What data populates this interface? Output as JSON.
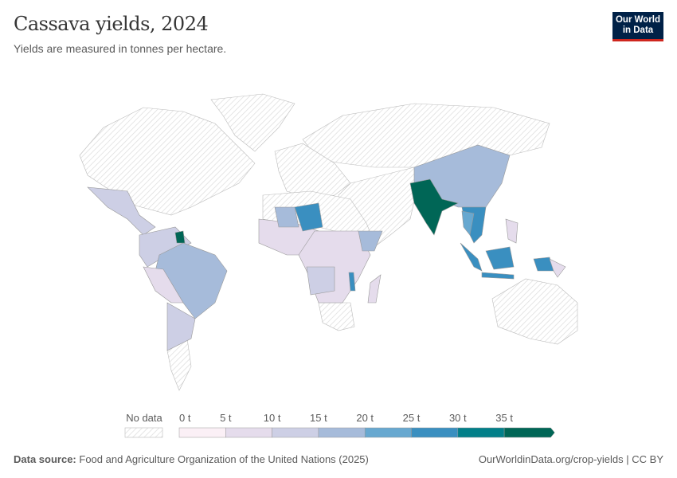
{
  "header": {
    "title": "Cassava yields, 2024",
    "subtitle": "Yields are measured in tonnes per hectare.",
    "logo": "Our World in Data"
  },
  "chart_data": {
    "type": "choropleth-map",
    "title": "Cassava yields, 2024",
    "unit": "t",
    "legend": {
      "no_data_label": "No data",
      "bins": [
        {
          "label": "0 t",
          "color": "#fbf0f6"
        },
        {
          "label": "5 t",
          "color": "#e5dcec"
        },
        {
          "label": "10 t",
          "color": "#cdcfe5"
        },
        {
          "label": "15 t",
          "color": "#a6bbda"
        },
        {
          "label": "20 t",
          "color": "#67a8d0"
        },
        {
          "label": "25 t",
          "color": "#3a8fc0"
        },
        {
          "label": "30 t",
          "color": "#027f89"
        },
        {
          "label": "35 t",
          "color": "#006656"
        }
      ]
    },
    "regions": [
      {
        "name": "India",
        "bin": "35+ t"
      },
      {
        "name": "China",
        "bin": "15–20 t"
      },
      {
        "name": "Indonesia",
        "bin": "25–30 t"
      },
      {
        "name": "Brazil",
        "bin": "15–20 t"
      },
      {
        "name": "Niger",
        "bin": "25–30 t"
      },
      {
        "name": "Guyana",
        "bin": "35+ t"
      },
      {
        "name": "Thailand",
        "bin": "20–25 t"
      },
      {
        "name": "Mexico",
        "bin": "10–15 t"
      }
    ]
  },
  "footer": {
    "source_label": "Data source:",
    "source": "Food and Agriculture Organization of the United Nations (2025)",
    "url": "OurWorldinData.org/crop-yields | CC BY"
  }
}
